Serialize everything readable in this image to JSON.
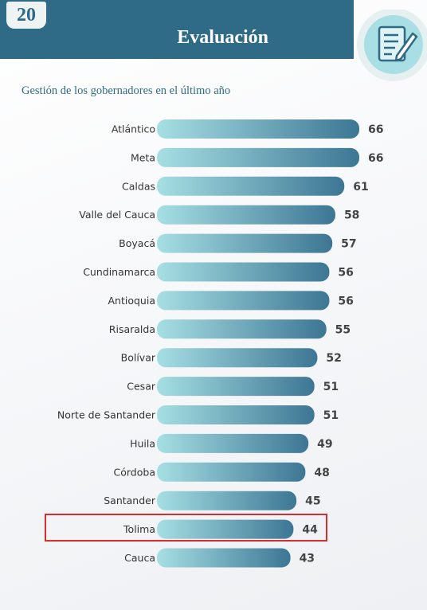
{
  "header": {
    "page_number": "20",
    "title": "Evaluación",
    "icon": "document-pen-icon"
  },
  "colors": {
    "header": "#2f6b86",
    "bar_start": "#a6dfe3",
    "bar_end": "#3d7694",
    "highlight": "#d32f2f"
  },
  "chart_data": {
    "type": "bar",
    "orientation": "horizontal",
    "title": "Gestión de los gobernadores en el último año",
    "categories": [
      "Atlántico",
      "Meta",
      "Caldas",
      "Valle del Cauca",
      "Boyacá",
      "Cundinamarca",
      "Antioquia",
      "Risaralda",
      "Bolívar",
      "Cesar",
      "Norte de Santander",
      "Huila",
      "Córdoba",
      "Santander",
      "Tolima",
      "Cauca"
    ],
    "values": [
      66,
      66,
      61,
      58,
      57,
      56,
      56,
      55,
      52,
      51,
      51,
      49,
      48,
      45,
      44,
      43
    ],
    "highlighted_category": "Tolima",
    "grid": false
  }
}
